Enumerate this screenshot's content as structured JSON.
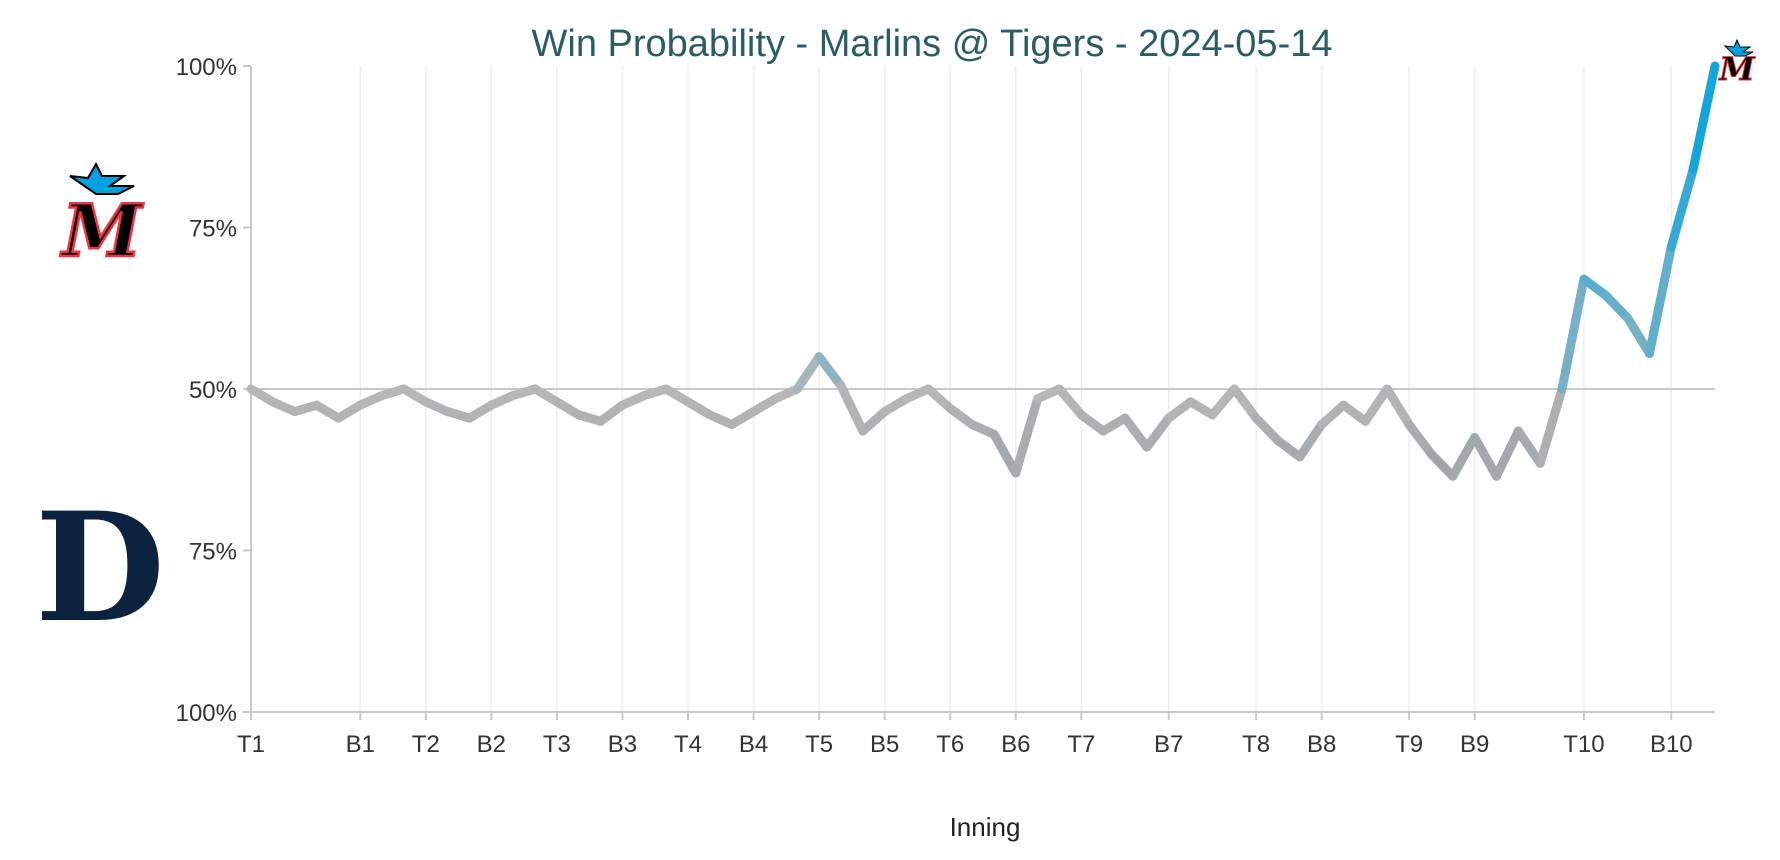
{
  "chart_data": {
    "type": "line",
    "title": "Win Probability - Marlins @ Tigers - 2024-05-14",
    "xlabel": "Inning",
    "ylabel": "",
    "y_ticks": [
      "100%",
      "75%",
      "50%",
      "75%",
      "100%"
    ],
    "x_ticks": [
      "T1",
      "B1",
      "T2",
      "B2",
      "T3",
      "B3",
      "T4",
      "B4",
      "T5",
      "B5",
      "T6",
      "B6",
      "T7",
      "B7",
      "T8",
      "B8",
      "T9",
      "B9",
      "T10",
      "B10"
    ],
    "x_tick_events": [
      0,
      5,
      8,
      11,
      14,
      17,
      20,
      23,
      26,
      29,
      32,
      35,
      38,
      42,
      46,
      49,
      53,
      56,
      61,
      65
    ],
    "ylim": [
      0,
      100
    ],
    "event_count": 68,
    "grid": "vertical",
    "reference_line": 50,
    "legend": "none",
    "series": [
      {
        "values": [
          50,
          48,
          46.5,
          47.5,
          45.5,
          47.5,
          49,
          50,
          48,
          46.5,
          45.5,
          47.5,
          49,
          50,
          48,
          46,
          45,
          47.5,
          49,
          50,
          48,
          46,
          44.5,
          46.5,
          48.5,
          50,
          55,
          50.5,
          43.5,
          46.5,
          48.5,
          50,
          47,
          44.5,
          43,
          37,
          48.5,
          50,
          46,
          43.5,
          45.5,
          41,
          45.5,
          48,
          46,
          50,
          45.5,
          42,
          39.5,
          44.5,
          47.5,
          45,
          50,
          44.5,
          40,
          36.5,
          42.5,
          36.5,
          43.5,
          38.5,
          50,
          67,
          64.5,
          61,
          55.5,
          72,
          84,
          100
        ]
      }
    ],
    "teams": {
      "top": "Marlins",
      "bottom": "Tigers"
    },
    "colors": {
      "line_neutral": "#b8b8b8",
      "line_dark": "#9aa1a6",
      "line_marlins": "#00a3e0",
      "title": "#2a5d63",
      "axis": "#c8c8c8",
      "grid": "#eeeeee",
      "tigers_navy": "#0c2340",
      "marlins_red": "#ef3340",
      "marlins_black": "#000000"
    }
  }
}
